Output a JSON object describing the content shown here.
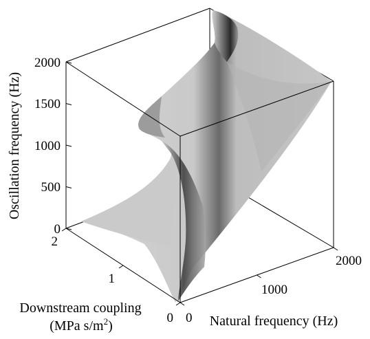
{
  "chart_data": {
    "type": "surface3d",
    "axes": {
      "x": {
        "label": "Natural frequency (Hz)",
        "range": [
          0,
          2000
        ],
        "ticks": [
          0,
          1000,
          2000
        ]
      },
      "y": {
        "label_line1": "Downstream coupling",
        "label_line2_main": "(MPa s/m",
        "label_line2_sup": "2",
        "label_line2_end": ")",
        "range": [
          0,
          2
        ],
        "ticks": [
          0,
          1,
          2
        ]
      },
      "z": {
        "label": "Oscillation frequency (Hz)",
        "range": [
          0,
          2000
        ],
        "ticks": [
          0,
          500,
          1000,
          1500,
          2000
        ]
      }
    },
    "surface": {
      "description_of_shape": "oscillation frequency follows natural frequency at zero coupling; a steep fold near natural frequency ~1000 Hz grows with coupling",
      "samples": [
        {
          "coupling": 0,
          "natural_frequency": [
            0,
            500,
            1000,
            1500,
            2000
          ],
          "oscillation_frequency": [
            0,
            500,
            1000,
            1500,
            2000
          ]
        },
        {
          "coupling": 1,
          "natural_frequency": [
            0,
            500,
            1000,
            1500,
            2000
          ],
          "oscillation_frequency": [
            150,
            450,
            1000,
            1600,
            1900
          ]
        },
        {
          "coupling": 2,
          "natural_frequency": [
            0,
            500,
            1000,
            1500,
            2000
          ],
          "oscillation_frequency": [
            100,
            700,
            1000,
            2000,
            2000
          ]
        }
      ]
    },
    "colormap": "gray",
    "grid": false,
    "box": true
  }
}
